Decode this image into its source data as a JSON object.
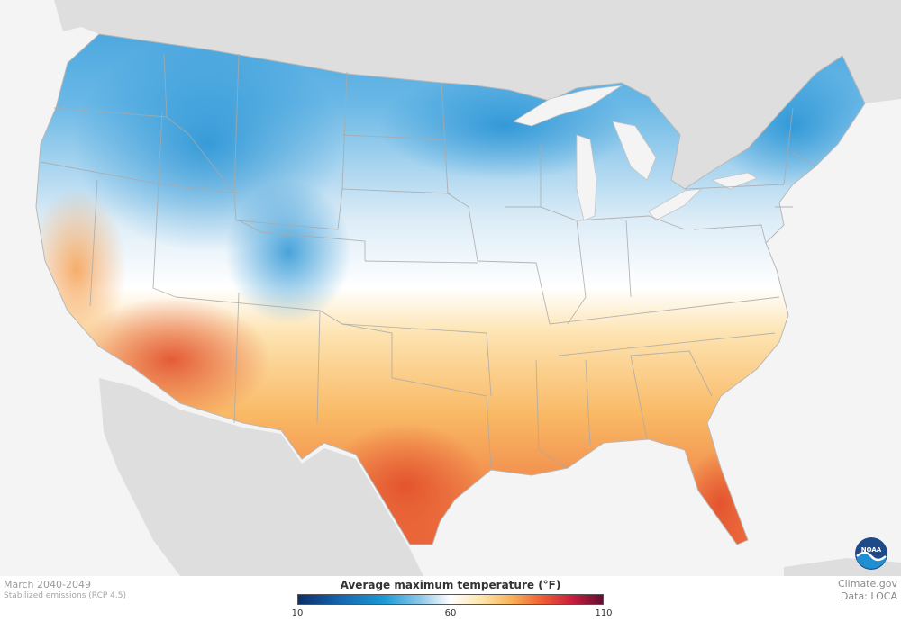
{
  "map": {
    "period": "March 2040-2049",
    "scenario": "Stabilized emissions (RCP 4.5)",
    "legend": {
      "title": "Average maximum temperature (°F)",
      "min": "10",
      "mid": "60",
      "max": "110",
      "colors": [
        "#0b2f6b",
        "#1567b0",
        "#1a9ad6",
        "#8cc7ea",
        "#ffffff",
        "#fde6ad",
        "#f9b257",
        "#ef5f33",
        "#c81d3e",
        "#5e0f32"
      ]
    },
    "credit": {
      "source": "Climate.gov",
      "data": "Data: LOCA"
    },
    "logo_text": "NOAA",
    "colors": {
      "land_outside": "#dcdcdc",
      "water": "#f4f4f4",
      "cold": "#3c9fdb",
      "mild": "#ffffff",
      "warm": "#f7b36a",
      "hot": "#e8502f"
    }
  }
}
